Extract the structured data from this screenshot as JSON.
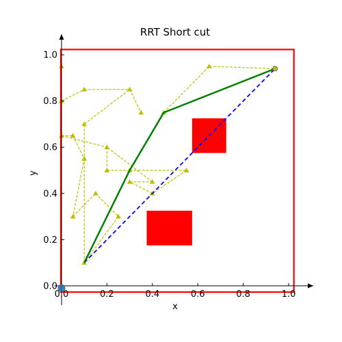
{
  "chart_data": {
    "type": "line",
    "title": "RRT Short cut",
    "xlabel": "x",
    "ylabel": "y",
    "xlim": [
      -0.03,
      1.03
    ],
    "ylim": [
      -0.03,
      1.03
    ],
    "grid": false,
    "x_ticks": [
      0.0,
      0.2,
      0.4,
      0.6,
      0.8,
      1.0
    ],
    "x_tick_labels": [
      "0.0",
      "0.2",
      "0.4",
      "0.6",
      "0.8",
      "1.0"
    ],
    "y_ticks": [
      0.0,
      0.2,
      0.4,
      0.6,
      0.8,
      1.0
    ],
    "y_tick_labels": [
      "0.0",
      "0.2",
      "0.4",
      "0.6",
      "0.8",
      "1.0"
    ],
    "colors": {
      "tree": "#bfbf00",
      "path": "#008000",
      "shortcut": "#0000ff",
      "obstacle": "#ff0000",
      "boundary": "#ff0000",
      "start": "#1f77b4"
    },
    "boundary": {
      "x": [
        -0.003,
        1.023
      ],
      "y": [
        -0.027,
        1.023
      ]
    },
    "obstacles": [
      {
        "x": [
          0.375,
          0.575
        ],
        "y": [
          0.175,
          0.325
        ]
      },
      {
        "x": [
          0.575,
          0.725
        ],
        "y": [
          0.575,
          0.725
        ]
      }
    ],
    "tree_edges": [
      [
        [
          0.0,
          0.0
        ],
        [
          0.0,
          0.95
        ]
      ],
      [
        [
          0.0,
          0.95
        ],
        [
          0.0,
          0.8
        ]
      ],
      [
        [
          0.0,
          0.8
        ],
        [
          0.1,
          0.85
        ]
      ],
      [
        [
          0.1,
          0.85
        ],
        [
          0.3,
          0.85
        ]
      ],
      [
        [
          0.3,
          0.85
        ],
        [
          0.35,
          0.75
        ]
      ],
      [
        [
          0.0,
          0.8
        ],
        [
          0.0,
          0.65
        ]
      ],
      [
        [
          0.0,
          0.65
        ],
        [
          0.05,
          0.65
        ]
      ],
      [
        [
          0.05,
          0.65
        ],
        [
          0.1,
          0.55
        ]
      ],
      [
        [
          0.1,
          0.55
        ],
        [
          0.05,
          0.3
        ]
      ],
      [
        [
          0.05,
          0.3
        ],
        [
          0.15,
          0.4
        ]
      ],
      [
        [
          0.15,
          0.4
        ],
        [
          0.25,
          0.3
        ]
      ],
      [
        [
          0.25,
          0.3
        ],
        [
          0.1,
          0.1
        ]
      ],
      [
        [
          0.1,
          0.1
        ],
        [
          0.1,
          0.7
        ]
      ],
      [
        [
          0.1,
          0.7
        ],
        [
          0.3,
          0.85
        ]
      ],
      [
        [
          0.0,
          0.65
        ],
        [
          0.2,
          0.6
        ]
      ],
      [
        [
          0.2,
          0.6
        ],
        [
          0.2,
          0.5
        ]
      ],
      [
        [
          0.2,
          0.5
        ],
        [
          0.3,
          0.5
        ]
      ],
      [
        [
          0.3,
          0.5
        ],
        [
          0.55,
          0.5
        ]
      ],
      [
        [
          0.55,
          0.5
        ],
        [
          0.4,
          0.4
        ]
      ],
      [
        [
          0.4,
          0.4
        ],
        [
          0.3,
          0.45
        ]
      ],
      [
        [
          0.3,
          0.45
        ],
        [
          0.4,
          0.45
        ]
      ],
      [
        [
          0.4,
          0.45
        ],
        [
          0.2,
          0.6
        ]
      ],
      [
        [
          0.3,
          0.5
        ],
        [
          0.45,
          0.75
        ]
      ],
      [
        [
          0.45,
          0.75
        ],
        [
          0.65,
          0.95
        ]
      ],
      [
        [
          0.65,
          0.95
        ],
        [
          0.94,
          0.94
        ]
      ]
    ],
    "tree_nodes": [
      [
        0.0,
        0.95
      ],
      [
        0.0,
        0.8
      ],
      [
        0.0,
        0.65
      ],
      [
        0.05,
        0.65
      ],
      [
        0.1,
        0.85
      ],
      [
        0.3,
        0.85
      ],
      [
        0.35,
        0.75
      ],
      [
        0.1,
        0.7
      ],
      [
        0.1,
        0.55
      ],
      [
        0.05,
        0.3
      ],
      [
        0.15,
        0.4
      ],
      [
        0.25,
        0.3
      ],
      [
        0.1,
        0.1
      ],
      [
        0.2,
        0.6
      ],
      [
        0.2,
        0.5
      ],
      [
        0.3,
        0.5
      ],
      [
        0.3,
        0.45
      ],
      [
        0.4,
        0.45
      ],
      [
        0.4,
        0.4
      ],
      [
        0.55,
        0.5
      ],
      [
        0.45,
        0.75
      ],
      [
        0.65,
        0.95
      ],
      [
        0.94,
        0.94
      ]
    ],
    "path": [
      [
        0.1,
        0.1
      ],
      [
        0.3,
        0.5
      ],
      [
        0.45,
        0.75
      ],
      [
        0.94,
        0.94
      ]
    ],
    "shortcut": [
      [
        0.1,
        0.1
      ],
      [
        0.94,
        0.94
      ]
    ],
    "start": [
      0.0,
      -0.01
    ],
    "goal": [
      0.94,
      0.94
    ]
  }
}
